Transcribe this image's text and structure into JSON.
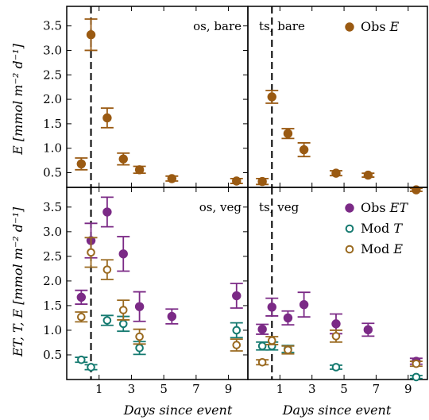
{
  "colors": {
    "obs_e": "#9a5a12",
    "obs_et": "#7b2a86",
    "mod_t": "#157a70",
    "mod_e": "#9a6a20"
  },
  "ylabels": {
    "top": "E [mmol m⁻² d⁻¹]",
    "bottom": "ET, T, E [mmol m⁻² d⁻¹]"
  },
  "xlabel": "Days since event",
  "chart_data": [
    {
      "type": "scatter",
      "panel": "os, bare",
      "row": 0,
      "col": 0,
      "xlim": [
        -1,
        10.2
      ],
      "ylim": [
        0.2,
        3.9
      ],
      "xticks": [
        1,
        3,
        5,
        7,
        9
      ],
      "yticks": [
        0.5,
        1.0,
        1.5,
        2.0,
        2.5,
        3.0,
        3.5
      ],
      "event_day": 0.5,
      "series": [
        {
          "key": "obs_e",
          "marker": "filled",
          "x": [
            -0.1,
            0.5,
            1.5,
            2.5,
            3.5,
            5.5,
            9.5
          ],
          "y": [
            0.68,
            3.32,
            1.62,
            0.78,
            0.56,
            0.38,
            0.33
          ],
          "err": [
            0.12,
            0.32,
            0.2,
            0.12,
            0.07,
            0.05,
            0.05
          ]
        }
      ]
    },
    {
      "type": "scatter",
      "panel": "ts, bare",
      "row": 0,
      "col": 1,
      "xlim": [
        -1,
        10.2
      ],
      "ylim": [
        0.2,
        3.9
      ],
      "xticks": [
        1,
        3,
        5,
        7,
        9
      ],
      "yticks": [],
      "event_day": 0.5,
      "legend": [
        {
          "key": "obs_e",
          "label": "Obs E",
          "marker": "filled"
        }
      ],
      "series": [
        {
          "key": "obs_e",
          "marker": "filled",
          "x": [
            -0.1,
            0.5,
            1.5,
            2.5,
            4.5,
            6.5,
            9.5
          ],
          "y": [
            0.32,
            2.05,
            1.3,
            0.97,
            0.49,
            0.45,
            0.15
          ],
          "err": [
            0.06,
            0.13,
            0.1,
            0.14,
            0.05,
            0.04,
            0.03
          ]
        }
      ]
    },
    {
      "type": "scatter",
      "panel": "os, veg",
      "row": 1,
      "col": 0,
      "xlim": [
        -1,
        10.2
      ],
      "ylim": [
        0.0,
        3.9
      ],
      "xticks": [
        1,
        3,
        5,
        7,
        9
      ],
      "yticks": [
        0.5,
        1.0,
        1.5,
        2.0,
        2.5,
        3.0,
        3.5
      ],
      "event_day": 0.5,
      "series": [
        {
          "key": "obs_et",
          "marker": "filled",
          "x": [
            -0.1,
            0.5,
            1.5,
            2.5,
            3.5,
            5.5,
            9.5
          ],
          "y": [
            1.67,
            2.82,
            3.4,
            2.55,
            1.48,
            1.28,
            1.7
          ],
          "err": [
            0.14,
            0.35,
            0.3,
            0.35,
            0.3,
            0.15,
            0.25
          ]
        },
        {
          "key": "mod_t",
          "marker": "open",
          "x": [
            -0.1,
            0.5,
            1.5,
            2.5,
            3.5,
            9.5
          ],
          "y": [
            0.4,
            0.25,
            1.2,
            1.13,
            0.64,
            1.0
          ],
          "err": [
            0.05,
            0.05,
            0.1,
            0.15,
            0.13,
            0.15
          ]
        },
        {
          "key": "mod_e",
          "marker": "open",
          "x": [
            -0.1,
            0.5,
            1.5,
            2.5,
            3.5,
            9.5
          ],
          "y": [
            1.27,
            2.58,
            2.23,
            1.41,
            0.87,
            0.7
          ],
          "err": [
            0.1,
            0.3,
            0.2,
            0.2,
            0.15,
            0.12
          ]
        }
      ]
    },
    {
      "type": "scatter",
      "panel": "ts, veg",
      "row": 1,
      "col": 1,
      "xlim": [
        -1,
        10.2
      ],
      "ylim": [
        0.0,
        3.9
      ],
      "xticks": [
        1,
        3,
        5,
        7,
        9
      ],
      "yticks": [],
      "event_day": 0.5,
      "legend": [
        {
          "key": "obs_et",
          "label": "Obs ET",
          "marker": "filled"
        },
        {
          "key": "mod_t",
          "label": "Mod T",
          "marker": "open"
        },
        {
          "key": "mod_e",
          "label": "Mod E",
          "marker": "open"
        }
      ],
      "series": [
        {
          "key": "obs_et",
          "marker": "filled",
          "x": [
            -0.1,
            0.5,
            1.5,
            2.5,
            4.5,
            6.5,
            9.5
          ],
          "y": [
            1.02,
            1.47,
            1.25,
            1.52,
            1.13,
            1.01,
            0.37
          ],
          "err": [
            0.1,
            0.18,
            0.14,
            0.25,
            0.2,
            0.13,
            0.06
          ]
        },
        {
          "key": "mod_t",
          "marker": "open",
          "x": [
            -0.1,
            0.5,
            1.5,
            4.5,
            9.5
          ],
          "y": [
            0.68,
            0.68,
            0.62,
            0.25,
            0.05
          ],
          "err": [
            0.08,
            0.08,
            0.07,
            0.04,
            0.03
          ]
        },
        {
          "key": "mod_e",
          "marker": "open",
          "x": [
            -0.1,
            0.5,
            1.5,
            4.5,
            9.5
          ],
          "y": [
            0.35,
            0.79,
            0.6,
            0.88,
            0.32
          ],
          "err": [
            0.05,
            0.08,
            0.08,
            0.12,
            0.05
          ]
        }
      ]
    }
  ]
}
